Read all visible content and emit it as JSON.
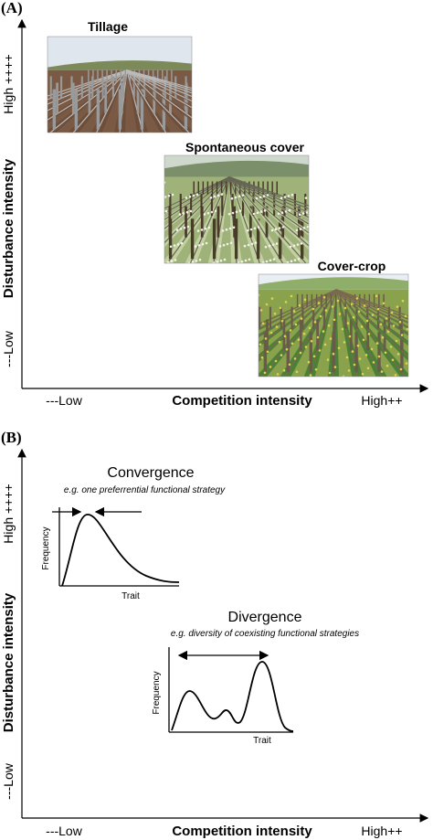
{
  "panel_a": {
    "label": "(A)",
    "y_axis": {
      "title": "Disturbance intensity",
      "high": "High ++++",
      "low": "---Low"
    },
    "x_axis": {
      "title": "Competition intensity",
      "low": "---Low",
      "high": "High++"
    },
    "photos": [
      {
        "label": "Tillage"
      },
      {
        "label": "Spontaneous cover"
      },
      {
        "label": "Cover-crop"
      }
    ]
  },
  "panel_b": {
    "label": "(B)",
    "y_axis": {
      "title": "Disturbance intensity",
      "high": "High ++++",
      "low": "---Low"
    },
    "x_axis": {
      "title": "Competition intensity",
      "low": "---Low",
      "high": "High++"
    },
    "convergence": {
      "title": "Convergence",
      "subtitle": "e.g.  one preferrential functional strategy",
      "y_label": "Frequency",
      "x_label": "Trait"
    },
    "divergence": {
      "title": "Divergence",
      "subtitle": "e.g. diversity of coexisting functional strategies",
      "y_label": "Frequency",
      "x_label": "Trait"
    }
  }
}
